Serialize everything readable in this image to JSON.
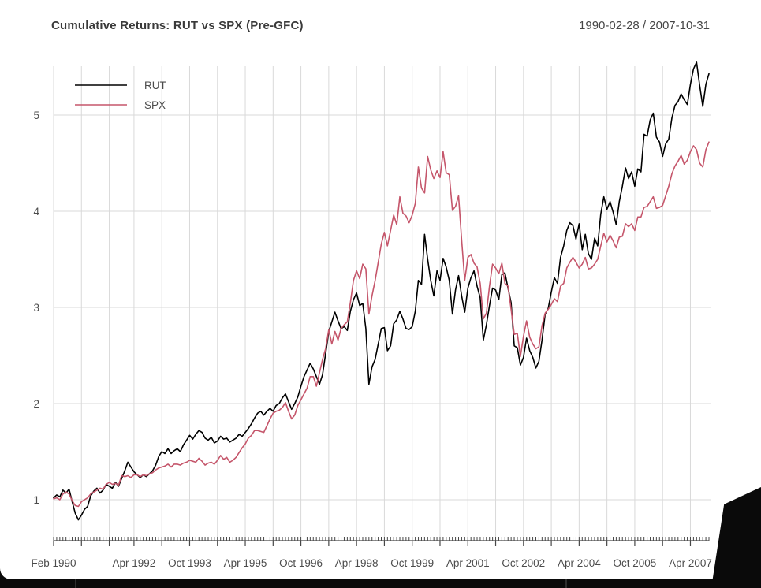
{
  "header": {
    "title": "Cumulative Returns: RUT vs SPX (Pre-GFC)",
    "date_range": "1990-02-28 / 2007-10-31"
  },
  "colors": {
    "rut_line": "#000000",
    "spx_line": "#c5566b",
    "gridline": "#d9d9d9",
    "axis": "#474747",
    "tick_text": "#4c4c4c",
    "window_bar": "#0a0a0a"
  },
  "chart_data": {
    "type": "line",
    "title": "Cumulative Returns: RUT vs SPX (Pre-GFC)",
    "subtitle": "1990-02-28 / 2007-10-31",
    "x_unit": "month",
    "x_start": "Feb 1990",
    "x_end": "Oct 2007",
    "n_months": 213,
    "grid": true,
    "legend_position": "top-left",
    "x_axis": {
      "gridline_months": [
        0,
        9,
        18,
        26,
        35,
        44,
        53,
        62,
        71,
        80,
        89,
        98,
        107,
        116,
        125,
        134,
        143,
        152,
        161,
        170,
        179,
        188,
        197,
        206
      ],
      "tick_labels": [
        {
          "month": 0,
          "text": "Feb 1990"
        },
        {
          "month": 26,
          "text": "Apr 1992"
        },
        {
          "month": 44,
          "text": "Oct 1993"
        },
        {
          "month": 62,
          "text": "Apr 1995"
        },
        {
          "month": 80,
          "text": "Oct 1996"
        },
        {
          "month": 98,
          "text": "Apr 1998"
        },
        {
          "month": 116,
          "text": "Oct 1999"
        },
        {
          "month": 134,
          "text": "Apr 2001"
        },
        {
          "month": 152,
          "text": "Oct 2002"
        },
        {
          "month": 170,
          "text": "Apr 2004"
        },
        {
          "month": 188,
          "text": "Oct 2005"
        },
        {
          "month": 206,
          "text": "Apr 2007"
        }
      ]
    },
    "y_axis": {
      "ticks": [
        1,
        2,
        3,
        4,
        5
      ],
      "min": 0.75,
      "max": 5.6
    },
    "series": [
      {
        "name": "RUT",
        "color": "#000000",
        "values": [
          1.02,
          1.05,
          1.03,
          1.1,
          1.07,
          1.11,
          0.98,
          0.86,
          0.79,
          0.84,
          0.9,
          0.93,
          1.04,
          1.09,
          1.12,
          1.07,
          1.1,
          1.16,
          1.14,
          1.12,
          1.18,
          1.14,
          1.22,
          1.3,
          1.39,
          1.34,
          1.29,
          1.26,
          1.23,
          1.26,
          1.24,
          1.27,
          1.3,
          1.36,
          1.45,
          1.5,
          1.48,
          1.53,
          1.48,
          1.51,
          1.53,
          1.5,
          1.57,
          1.62,
          1.67,
          1.63,
          1.68,
          1.72,
          1.7,
          1.64,
          1.62,
          1.65,
          1.59,
          1.61,
          1.66,
          1.63,
          1.64,
          1.6,
          1.62,
          1.64,
          1.68,
          1.66,
          1.7,
          1.74,
          1.79,
          1.85,
          1.9,
          1.92,
          1.88,
          1.92,
          1.95,
          1.92,
          1.98,
          2.0,
          2.06,
          2.1,
          2.02,
          1.94,
          2.0,
          2.07,
          2.18,
          2.28,
          2.35,
          2.42,
          2.36,
          2.28,
          2.2,
          2.3,
          2.52,
          2.75,
          2.85,
          2.95,
          2.86,
          2.78,
          2.8,
          2.76,
          2.96,
          3.08,
          3.15,
          3.02,
          3.04,
          2.78,
          2.2,
          2.38,
          2.46,
          2.62,
          2.78,
          2.79,
          2.55,
          2.6,
          2.83,
          2.87,
          2.96,
          2.88,
          2.78,
          2.77,
          2.8,
          2.96,
          3.28,
          3.24,
          3.76,
          3.5,
          3.28,
          3.12,
          3.38,
          3.28,
          3.51,
          3.42,
          3.28,
          2.93,
          3.18,
          3.33,
          3.12,
          2.95,
          3.2,
          3.31,
          3.38,
          3.22,
          3.1,
          2.66,
          2.82,
          3.02,
          3.2,
          3.18,
          3.08,
          3.34,
          3.36,
          3.2,
          3.05,
          2.6,
          2.58,
          2.4,
          2.48,
          2.68,
          2.55,
          2.48,
          2.37,
          2.44,
          2.66,
          2.93,
          2.99,
          3.16,
          3.31,
          3.25,
          3.52,
          3.64,
          3.8,
          3.88,
          3.85,
          3.71,
          3.87,
          3.6,
          3.76,
          3.56,
          3.5,
          3.72,
          3.64,
          3.97,
          4.15,
          4.02,
          4.1,
          3.99,
          3.86,
          4.1,
          4.26,
          4.45,
          4.34,
          4.41,
          4.26,
          4.44,
          4.41,
          4.8,
          4.78,
          4.95,
          5.02,
          4.77,
          4.72,
          4.57,
          4.7,
          4.75,
          4.97,
          5.1,
          5.14,
          5.22,
          5.16,
          5.11,
          5.32,
          5.48,
          5.55,
          5.31,
          5.09,
          5.32,
          5.43
        ]
      },
      {
        "name": "SPX",
        "color": "#c5566b",
        "values": [
          1.01,
          1.02,
          1.0,
          1.06,
          1.08,
          1.06,
          0.99,
          0.94,
          0.93,
          0.98,
          1.0,
          1.02,
          1.06,
          1.08,
          1.1,
          1.12,
          1.11,
          1.16,
          1.18,
          1.16,
          1.17,
          1.15,
          1.25,
          1.24,
          1.25,
          1.23,
          1.26,
          1.26,
          1.24,
          1.26,
          1.25,
          1.27,
          1.28,
          1.31,
          1.33,
          1.34,
          1.35,
          1.37,
          1.34,
          1.37,
          1.37,
          1.36,
          1.38,
          1.39,
          1.41,
          1.4,
          1.39,
          1.43,
          1.4,
          1.36,
          1.38,
          1.39,
          1.37,
          1.41,
          1.46,
          1.42,
          1.44,
          1.39,
          1.41,
          1.44,
          1.49,
          1.54,
          1.58,
          1.64,
          1.67,
          1.72,
          1.72,
          1.71,
          1.7,
          1.77,
          1.84,
          1.9,
          1.92,
          1.93,
          1.96,
          2.01,
          1.92,
          1.84,
          1.88,
          1.98,
          2.04,
          2.1,
          2.16,
          2.28,
          2.28,
          2.18,
          2.32,
          2.46,
          2.57,
          2.77,
          2.62,
          2.75,
          2.66,
          2.78,
          2.82,
          2.85,
          3.05,
          3.28,
          3.38,
          3.3,
          3.45,
          3.4,
          2.93,
          3.12,
          3.28,
          3.47,
          3.66,
          3.78,
          3.64,
          3.8,
          3.96,
          3.86,
          4.15,
          3.98,
          3.95,
          3.88,
          3.96,
          4.08,
          4.46,
          4.24,
          4.19,
          4.57,
          4.43,
          4.34,
          4.42,
          4.35,
          4.62,
          4.4,
          4.38,
          4.01,
          4.05,
          4.16,
          3.7,
          3.28,
          3.52,
          3.55,
          3.46,
          3.42,
          3.25,
          2.88,
          2.94,
          3.22,
          3.45,
          3.41,
          3.35,
          3.46,
          3.25,
          3.22,
          2.98,
          2.72,
          2.73,
          2.49,
          2.7,
          2.86,
          2.69,
          2.62,
          2.57,
          2.59,
          2.81,
          2.94,
          2.98,
          3.03,
          3.09,
          3.06,
          3.22,
          3.25,
          3.41,
          3.47,
          3.52,
          3.47,
          3.41,
          3.45,
          3.52,
          3.4,
          3.41,
          3.45,
          3.5,
          3.64,
          3.77,
          3.68,
          3.75,
          3.69,
          3.62,
          3.73,
          3.74,
          3.87,
          3.84,
          3.87,
          3.8,
          3.94,
          3.94,
          4.04,
          4.05,
          4.1,
          4.15,
          4.03,
          4.04,
          4.06,
          4.16,
          4.26,
          4.39,
          4.47,
          4.52,
          4.58,
          4.49,
          4.53,
          4.62,
          4.68,
          4.64,
          4.5,
          4.46,
          4.64,
          4.72
        ]
      }
    ]
  }
}
